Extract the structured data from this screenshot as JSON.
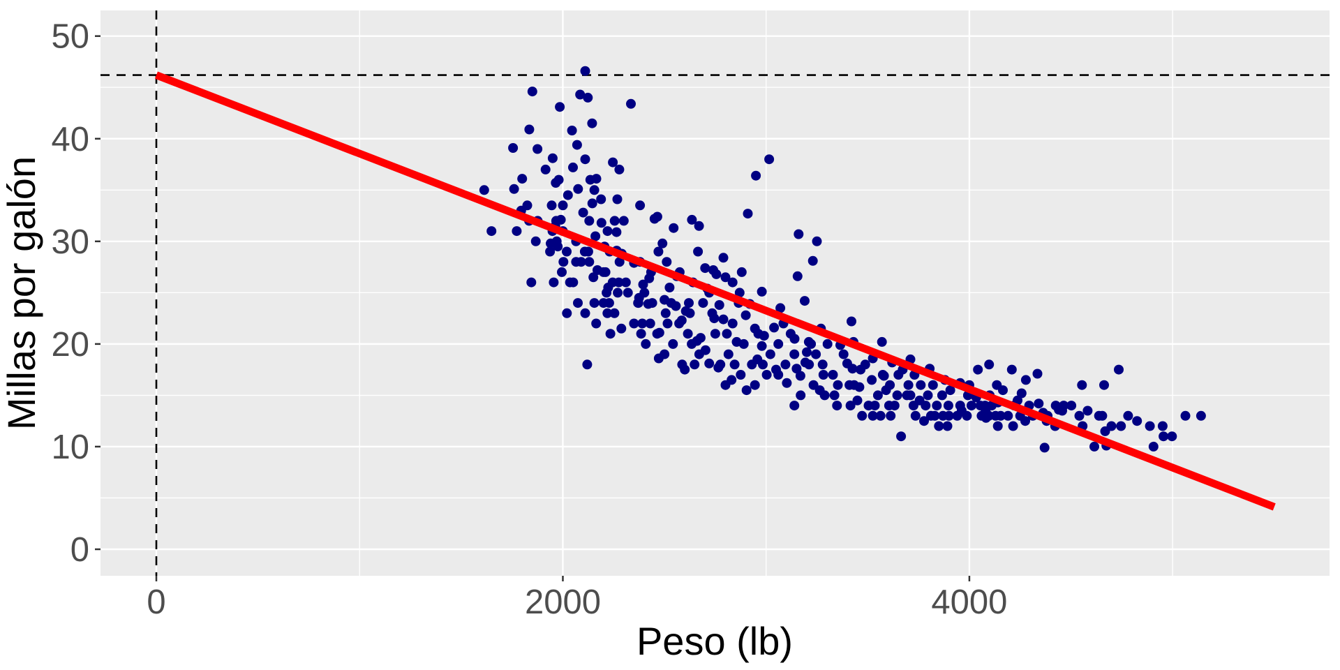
{
  "chart_data": {
    "type": "scatter",
    "title": "",
    "xlabel": "Peso (lb)",
    "ylabel": "Millas por galón",
    "x_ticks": [
      0,
      2000,
      4000
    ],
    "x_tick_labels": [
      "0",
      "2000",
      "4000"
    ],
    "x_minor_gridlines": [
      1000,
      3000,
      5000
    ],
    "y_ticks": [
      0,
      10,
      20,
      30,
      40,
      50
    ],
    "y_tick_labels": [
      "0",
      "10",
      "20",
      "30",
      "40",
      "50"
    ],
    "y_minor_gridlines": [
      5,
      15,
      25,
      35,
      45
    ],
    "xlim": [
      -275,
      5770
    ],
    "ylim": [
      -2.5,
      52.5
    ],
    "grid": "white major and minor gridlines on grey panel",
    "legend_position": "none",
    "colors": {
      "panel_background": "#EBEBEB",
      "gridline": "#FFFFFF",
      "axis_text": "#4D4D4D",
      "axis_title": "#000000",
      "tick_mark": "#333333",
      "point": "#000082",
      "regression_line": "#FF0000",
      "reference_line": "#000000"
    },
    "regression_line": {
      "intercept": 46.2,
      "slope": -0.00765,
      "x_start": 0,
      "x_end": 5500
    },
    "reference_lines": {
      "horizontal_y": 46.2,
      "vertical_x": 0,
      "style": "dashed"
    },
    "points": [
      [
        1613,
        35
      ],
      [
        1649,
        31
      ],
      [
        1755,
        39.1
      ],
      [
        1760,
        35.1
      ],
      [
        1773,
        31
      ],
      [
        1795,
        33
      ],
      [
        1800,
        36.1
      ],
      [
        1825,
        33.5
      ],
      [
        1834,
        32
      ],
      [
        1835,
        40.9
      ],
      [
        1845,
        26
      ],
      [
        1850,
        44.6
      ],
      [
        1867,
        30
      ],
      [
        1875,
        39
      ],
      [
        1876,
        32
      ],
      [
        1915,
        37
      ],
      [
        1937,
        29
      ],
      [
        1940,
        29.8
      ],
      [
        1945,
        33.5
      ],
      [
        1949,
        31
      ],
      [
        1950,
        38.1
      ],
      [
        1955,
        26
      ],
      [
        1963,
        31.5
      ],
      [
        1965,
        35.7
      ],
      [
        1967,
        32
      ],
      [
        1970,
        30
      ],
      [
        1975,
        29.5
      ],
      [
        1980,
        36
      ],
      [
        1985,
        43.1
      ],
      [
        1990,
        32.1
      ],
      [
        1995,
        27
      ],
      [
        2000,
        31
      ],
      [
        2000,
        33.5
      ],
      [
        2003,
        28
      ],
      [
        2019,
        29
      ],
      [
        2020,
        23
      ],
      [
        2025,
        34.5
      ],
      [
        2035,
        26
      ],
      [
        2045,
        40.8
      ],
      [
        2050,
        37.2
      ],
      [
        2051,
        26
      ],
      [
        2065,
        28
      ],
      [
        2065,
        30
      ],
      [
        2070,
        39.4
      ],
      [
        2074,
        24
      ],
      [
        2075,
        35.1
      ],
      [
        2085,
        44.3
      ],
      [
        2090,
        28
      ],
      [
        2100,
        32.8
      ],
      [
        2108,
        29
      ],
      [
        2110,
        46.6
      ],
      [
        2110,
        23
      ],
      [
        2110,
        38
      ],
      [
        2120,
        18
      ],
      [
        2123,
        44
      ],
      [
        2125,
        29
      ],
      [
        2130,
        32
      ],
      [
        2130,
        28
      ],
      [
        2135,
        36
      ],
      [
        2144,
        41.5
      ],
      [
        2145,
        33.7
      ],
      [
        2150,
        26.5
      ],
      [
        2155,
        24
      ],
      [
        2155,
        35
      ],
      [
        2160,
        30.5
      ],
      [
        2164,
        22
      ],
      [
        2165,
        36.1
      ],
      [
        2170,
        27.2
      ],
      [
        2188,
        34.1
      ],
      [
        2190,
        31.8
      ],
      [
        2200,
        24
      ],
      [
        2200,
        27
      ],
      [
        2205,
        29.5
      ],
      [
        2210,
        27
      ],
      [
        2215,
        25
      ],
      [
        2219,
        23
      ],
      [
        2220,
        31
      ],
      [
        2223,
        25.5
      ],
      [
        2228,
        24
      ],
      [
        2230,
        29
      ],
      [
        2234,
        21
      ],
      [
        2245,
        26
      ],
      [
        2246,
        37.7
      ],
      [
        2254,
        23
      ],
      [
        2255,
        32
      ],
      [
        2264,
        30.9
      ],
      [
        2265,
        29.1
      ],
      [
        2268,
        34.1
      ],
      [
        2270,
        25
      ],
      [
        2275,
        26
      ],
      [
        2278,
        37
      ],
      [
        2279,
        28
      ],
      [
        2288,
        21.5
      ],
      [
        2290,
        28.8
      ],
      [
        2300,
        32
      ],
      [
        2310,
        26
      ],
      [
        2320,
        25
      ],
      [
        2335,
        43.4
      ],
      [
        2350,
        22
      ],
      [
        2350,
        27.9
      ],
      [
        2370,
        24
      ],
      [
        2372,
        24
      ],
      [
        2375,
        24.5
      ],
      [
        2380,
        28
      ],
      [
        2380,
        33.5
      ],
      [
        2385,
        21
      ],
      [
        2391,
        22
      ],
      [
        2395,
        25.8
      ],
      [
        2401,
        25
      ],
      [
        2408,
        20
      ],
      [
        2420,
        23.9
      ],
      [
        2425,
        26.4
      ],
      [
        2430,
        22
      ],
      [
        2434,
        27
      ],
      [
        2440,
        24
      ],
      [
        2451,
        32.2
      ],
      [
        2464,
        21
      ],
      [
        2465,
        32.4
      ],
      [
        2470,
        29
      ],
      [
        2472,
        18.6
      ],
      [
        2475,
        21.1
      ],
      [
        2490,
        29.8
      ],
      [
        2500,
        19
      ],
      [
        2500,
        24.3
      ],
      [
        2506,
        23
      ],
      [
        2511,
        28
      ],
      [
        2515,
        22
      ],
      [
        2525,
        25.5
      ],
      [
        2533,
        24
      ],
      [
        2542,
        20
      ],
      [
        2545,
        31.3
      ],
      [
        2556,
        23.7
      ],
      [
        2560,
        26.6
      ],
      [
        2572,
        22
      ],
      [
        2575,
        27
      ],
      [
        2585,
        22.3
      ],
      [
        2587,
        18
      ],
      [
        2600,
        17.5
      ],
      [
        2605,
        23.2
      ],
      [
        2615,
        21
      ],
      [
        2620,
        24
      ],
      [
        2625,
        23
      ],
      [
        2634,
        20
      ],
      [
        2635,
        32.1
      ],
      [
        2640,
        26
      ],
      [
        2648,
        18
      ],
      [
        2660,
        20.3
      ],
      [
        2665,
        29
      ],
      [
        2670,
        31.5
      ],
      [
        2671,
        19
      ],
      [
        2678,
        20.6
      ],
      [
        2690,
        24
      ],
      [
        2700,
        27.4
      ],
      [
        2702,
        19.4
      ],
      [
        2711,
        25.4
      ],
      [
        2720,
        25
      ],
      [
        2720,
        18.1
      ],
      [
        2735,
        23
      ],
      [
        2740,
        27.2
      ],
      [
        2745,
        22.5
      ],
      [
        2750,
        21
      ],
      [
        2755,
        26.8
      ],
      [
        2765,
        17.7
      ],
      [
        2770,
        23.8
      ],
      [
        2775,
        18
      ],
      [
        2790,
        22.4
      ],
      [
        2790,
        28.4
      ],
      [
        2800,
        16
      ],
      [
        2800,
        26.5
      ],
      [
        2807,
        21
      ],
      [
        2815,
        19
      ],
      [
        2830,
        16.5
      ],
      [
        2835,
        22
      ],
      [
        2835,
        26
      ],
      [
        2845,
        18
      ],
      [
        2855,
        20.2
      ],
      [
        2865,
        24
      ],
      [
        2870,
        25
      ],
      [
        2875,
        17
      ],
      [
        2880,
        27
      ],
      [
        2890,
        20
      ],
      [
        2900,
        22.8
      ],
      [
        2904,
        15.5
      ],
      [
        2910,
        32.7
      ],
      [
        2920,
        23.9
      ],
      [
        2930,
        18
      ],
      [
        2945,
        16
      ],
      [
        2945,
        21.5
      ],
      [
        2950,
        36.4
      ],
      [
        2957,
        18.5
      ],
      [
        2962,
        21
      ],
      [
        2979,
        19.8
      ],
      [
        2979,
        25.1
      ],
      [
        2984,
        18
      ],
      [
        2990,
        20.8
      ],
      [
        3003,
        17
      ],
      [
        3015,
        38
      ],
      [
        3021,
        19
      ],
      [
        3039,
        21.6
      ],
      [
        3049,
        17.5
      ],
      [
        3060,
        17
      ],
      [
        3060,
        20
      ],
      [
        3070,
        23.5
      ],
      [
        3085,
        22
      ],
      [
        3095,
        18
      ],
      [
        3102,
        16.2
      ],
      [
        3121,
        21
      ],
      [
        3139,
        14
      ],
      [
        3139,
        19
      ],
      [
        3140,
        20.5
      ],
      [
        3150,
        17.6
      ],
      [
        3155,
        26.6
      ],
      [
        3160,
        30.7
      ],
      [
        3169,
        16.9
      ],
      [
        3170,
        15
      ],
      [
        3190,
        24.2
      ],
      [
        3193,
        18.2
      ],
      [
        3200,
        19.2
      ],
      [
        3210,
        20.2
      ],
      [
        3211,
        18
      ],
      [
        3221,
        20
      ],
      [
        3230,
        28.1
      ],
      [
        3233,
        16
      ],
      [
        3245,
        19
      ],
      [
        3250,
        30
      ],
      [
        3264,
        15.5
      ],
      [
        3270,
        21.5
      ],
      [
        3278,
        18
      ],
      [
        3282,
        17
      ],
      [
        3288,
        15
      ],
      [
        3302,
        20
      ],
      [
        3329,
        17
      ],
      [
        3336,
        15
      ],
      [
        3349,
        14
      ],
      [
        3353,
        16
      ],
      [
        3365,
        19.9
      ],
      [
        3381,
        19
      ],
      [
        3399,
        18.1
      ],
      [
        3410,
        16
      ],
      [
        3415,
        14
      ],
      [
        3420,
        22.2
      ],
      [
        3425,
        17.6
      ],
      [
        3430,
        20.2
      ],
      [
        3433,
        16
      ],
      [
        3449,
        14.5
      ],
      [
        3459,
        15.8
      ],
      [
        3465,
        17.5
      ],
      [
        3472,
        13
      ],
      [
        3488,
        18
      ],
      [
        3504,
        14
      ],
      [
        3520,
        16.5
      ],
      [
        3525,
        18.6
      ],
      [
        3525,
        13
      ],
      [
        3535,
        14
      ],
      [
        3550,
        15
      ],
      [
        3563,
        13
      ],
      [
        3570,
        20.2
      ],
      [
        3574,
        17
      ],
      [
        3580,
        16.9
      ],
      [
        3590,
        15.5
      ],
      [
        3605,
        14
      ],
      [
        3609,
        16
      ],
      [
        3613,
        13
      ],
      [
        3620,
        18.2
      ],
      [
        3632,
        14
      ],
      [
        3645,
        15
      ],
      [
        3651,
        17
      ],
      [
        3664,
        11
      ],
      [
        3672,
        17.5
      ],
      [
        3693,
        15
      ],
      [
        3700,
        16
      ],
      [
        3710,
        15
      ],
      [
        3710,
        18.5
      ],
      [
        3725,
        14
      ],
      [
        3730,
        17
      ],
      [
        3735,
        13
      ],
      [
        3755,
        14.5
      ],
      [
        3761,
        16
      ],
      [
        3777,
        12.5
      ],
      [
        3785,
        14
      ],
      [
        3796,
        15
      ],
      [
        3805,
        17.6
      ],
      [
        3811,
        13
      ],
      [
        3821,
        16
      ],
      [
        3830,
        13
      ],
      [
        3840,
        14
      ],
      [
        3850,
        12
      ],
      [
        3866,
        15
      ],
      [
        3870,
        13
      ],
      [
        3880,
        16.5
      ],
      [
        3892,
        12
      ],
      [
        3897,
        14
      ],
      [
        3900,
        13
      ],
      [
        3906,
        15.5
      ],
      [
        3940,
        13
      ],
      [
        3955,
        14
      ],
      [
        3955,
        16.2
      ],
      [
        3962,
        13.5
      ],
      [
        3988,
        13
      ],
      [
        3993,
        15
      ],
      [
        4000,
        16
      ],
      [
        4010,
        14
      ],
      [
        4034,
        14.8
      ],
      [
        4042,
        17.5
      ],
      [
        4054,
        14
      ],
      [
        4060,
        13
      ],
      [
        4077,
        14
      ],
      [
        4080,
        13.5
      ],
      [
        4082,
        12.8
      ],
      [
        4096,
        13
      ],
      [
        4097,
        18
      ],
      [
        4100,
        15
      ],
      [
        4110,
        14
      ],
      [
        4129,
        13
      ],
      [
        4135,
        16
      ],
      [
        4140,
        12
      ],
      [
        4141,
        14.3
      ],
      [
        4154,
        13
      ],
      [
        4165,
        15.5
      ],
      [
        4190,
        13
      ],
      [
        4209,
        17.5
      ],
      [
        4215,
        12
      ],
      [
        4220,
        14
      ],
      [
        4237,
        14.5
      ],
      [
        4250,
        13
      ],
      [
        4257,
        15.2
      ],
      [
        4275,
        12.5
      ],
      [
        4278,
        16.5
      ],
      [
        4294,
        14
      ],
      [
        4312,
        13
      ],
      [
        4335,
        17.1
      ],
      [
        4341,
        14.2
      ],
      [
        4354,
        13
      ],
      [
        4363,
        13.3
      ],
      [
        4370,
        9.9
      ],
      [
        4380,
        12.5
      ],
      [
        4385,
        13
      ],
      [
        4422,
        12
      ],
      [
        4425,
        14
      ],
      [
        4440,
        13.6
      ],
      [
        4457,
        13.5
      ],
      [
        4464,
        14
      ],
      [
        4502,
        14
      ],
      [
        4541,
        13
      ],
      [
        4554,
        16
      ],
      [
        4557,
        12
      ],
      [
        4582,
        13.5
      ],
      [
        4615,
        10
      ],
      [
        4638,
        13
      ],
      [
        4654,
        13
      ],
      [
        4663,
        16
      ],
      [
        4668,
        11.5
      ],
      [
        4674,
        10.1
      ],
      [
        4699,
        12
      ],
      [
        4735,
        17.5
      ],
      [
        4746,
        12
      ],
      [
        4781,
        13
      ],
      [
        4825,
        12.5
      ],
      [
        4888,
        12
      ],
      [
        4906,
        10
      ],
      [
        4951,
        12
      ],
      [
        4955,
        11
      ],
      [
        4997,
        11
      ],
      [
        5063,
        13
      ],
      [
        5140,
        13
      ]
    ]
  }
}
